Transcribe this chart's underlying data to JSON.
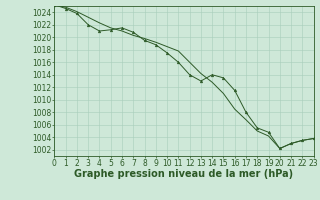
{
  "xlabel": "Graphe pression niveau de la mer (hPa)",
  "background_color": "#cee8d8",
  "grid_color": "#a8cebb",
  "line_color": "#2d5a27",
  "hours": [
    0,
    1,
    2,
    3,
    4,
    5,
    6,
    7,
    8,
    9,
    10,
    11,
    12,
    13,
    14,
    15,
    16,
    17,
    18,
    19,
    20,
    21,
    22,
    23
  ],
  "line1": [
    1025.2,
    1024.8,
    1024.1,
    1023.2,
    1022.3,
    1021.5,
    1021.0,
    1020.3,
    1019.8,
    1019.2,
    1018.5,
    1017.8,
    1016.0,
    1014.2,
    1012.8,
    1011.0,
    1008.5,
    1006.8,
    1005.0,
    1004.2,
    1002.2,
    1003.0,
    1003.5,
    1003.8
  ],
  "line2": [
    1025.2,
    1024.6,
    1023.8,
    1022.0,
    1021.0,
    1021.2,
    1021.5,
    1020.8,
    1019.5,
    1018.8,
    1017.5,
    1016.0,
    1014.0,
    1013.0,
    1014.0,
    1013.5,
    1011.5,
    1008.0,
    1005.5,
    1004.8,
    1002.2,
    1003.0,
    1003.5,
    1003.8
  ],
  "ylim_min": 1001,
  "ylim_max": 1025,
  "xlim_min": 0,
  "xlim_max": 23,
  "ytick_min": 1002,
  "ytick_max": 1024,
  "ytick_interval": 2,
  "xlabel_fontsize": 7,
  "tick_fontsize": 5.5,
  "linewidth": 0.7,
  "markersize": 2.0
}
